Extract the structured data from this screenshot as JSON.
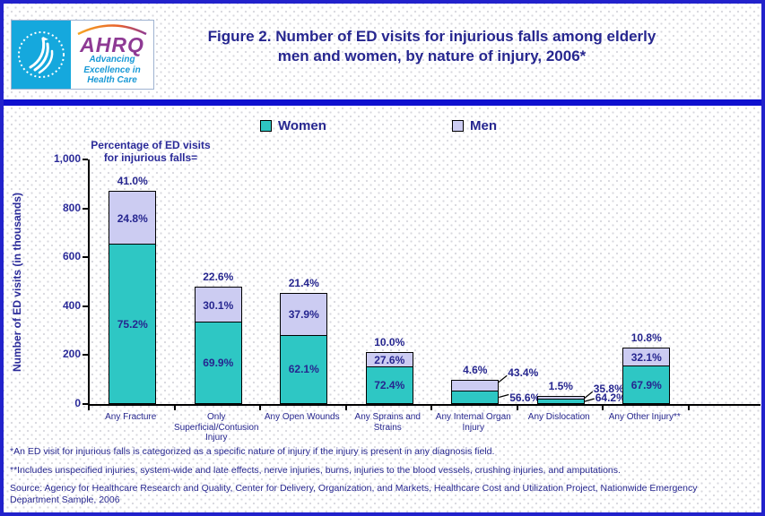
{
  "header": {
    "logo": {
      "ahrq_acronym": "AHRQ",
      "tagline": "Advancing\nExcellence in\nHealth Care",
      "hhs_emblem": "hhs-eagle-seal"
    },
    "title_line1": "Figure 2. Number of ED visits for injurious falls among elderly",
    "title_line2": "men and women, by nature of injury, 2006*"
  },
  "legend": {
    "women_label": "Women",
    "men_label": "Men"
  },
  "annotation": "Percentage of ED visits\nfor injurious falls=",
  "chart_data": {
    "type": "bar",
    "stacked": true,
    "title": "Figure 2. Number of ED visits for injurious falls among elderly men and women, by nature of injury, 2006*",
    "ylabel": "Number of ED visits (in thousands)",
    "ylim": [
      0,
      1000
    ],
    "y_ticks": [
      "1,000",
      "800",
      "600",
      "400",
      "200",
      "0"
    ],
    "grid": false,
    "legend_position": "top",
    "categories": [
      "Any Fracture",
      "Only\nSuperficial/Contusion\nInjury",
      "Any Open Wounds",
      "Any Sprains and\nStrains",
      "Any Internal Organ\nInjury",
      "Any Dislocation",
      "Any Other Injury**"
    ],
    "series": [
      {
        "name": "Women",
        "color": "#2ec7c4",
        "values": [
          655,
          336,
          283,
          154,
          55,
          21,
          156
        ],
        "pct_labels": [
          "75.2%",
          "69.9%",
          "62.1%",
          "72.4%",
          "56.6%",
          "64.2%",
          "67.9%"
        ]
      },
      {
        "name": "Men",
        "color": "#ccccf2",
        "values": [
          216,
          144,
          172,
          59,
          43,
          11,
          74
        ],
        "pct_labels": [
          "24.8%",
          "30.1%",
          "37.9%",
          "27.6%",
          "43.4%",
          "35.8%",
          "32.1%"
        ]
      }
    ],
    "total_pct_labels": [
      "41.0%",
      "22.6%",
      "21.4%",
      "10.0%",
      "4.6%",
      "1.5%",
      "10.8%"
    ],
    "callout_label_categories": [
      4,
      5
    ]
  },
  "footnotes": {
    "note1": "*An ED visit for injurious falls is categorized as a specific nature of injury if the injury is present in any diagnosis field.",
    "note2": "**Includes unspecified injuries, system-wide and late effects, nerve injuries, burns, injuries to the blood vessels, crushing injuries, and amputations.",
    "source": "Source: Agency for Healthcare Research and Quality, Center for Delivery, Organization, and Markets, Healthcare Cost and Utilization Project, Nationwide Emergency Department Sample, 2006"
  },
  "colors": {
    "women_bar": "#2ec7c4",
    "men_bar": "#ccccf2",
    "text_navy": "#26268f",
    "divider_band": "#0f10cf",
    "outer_border": "#2222cc",
    "hhs_cyan": "#15a8dd",
    "ahrq_purple": "#8e3a94",
    "tagline_blue": "#1899d6"
  }
}
